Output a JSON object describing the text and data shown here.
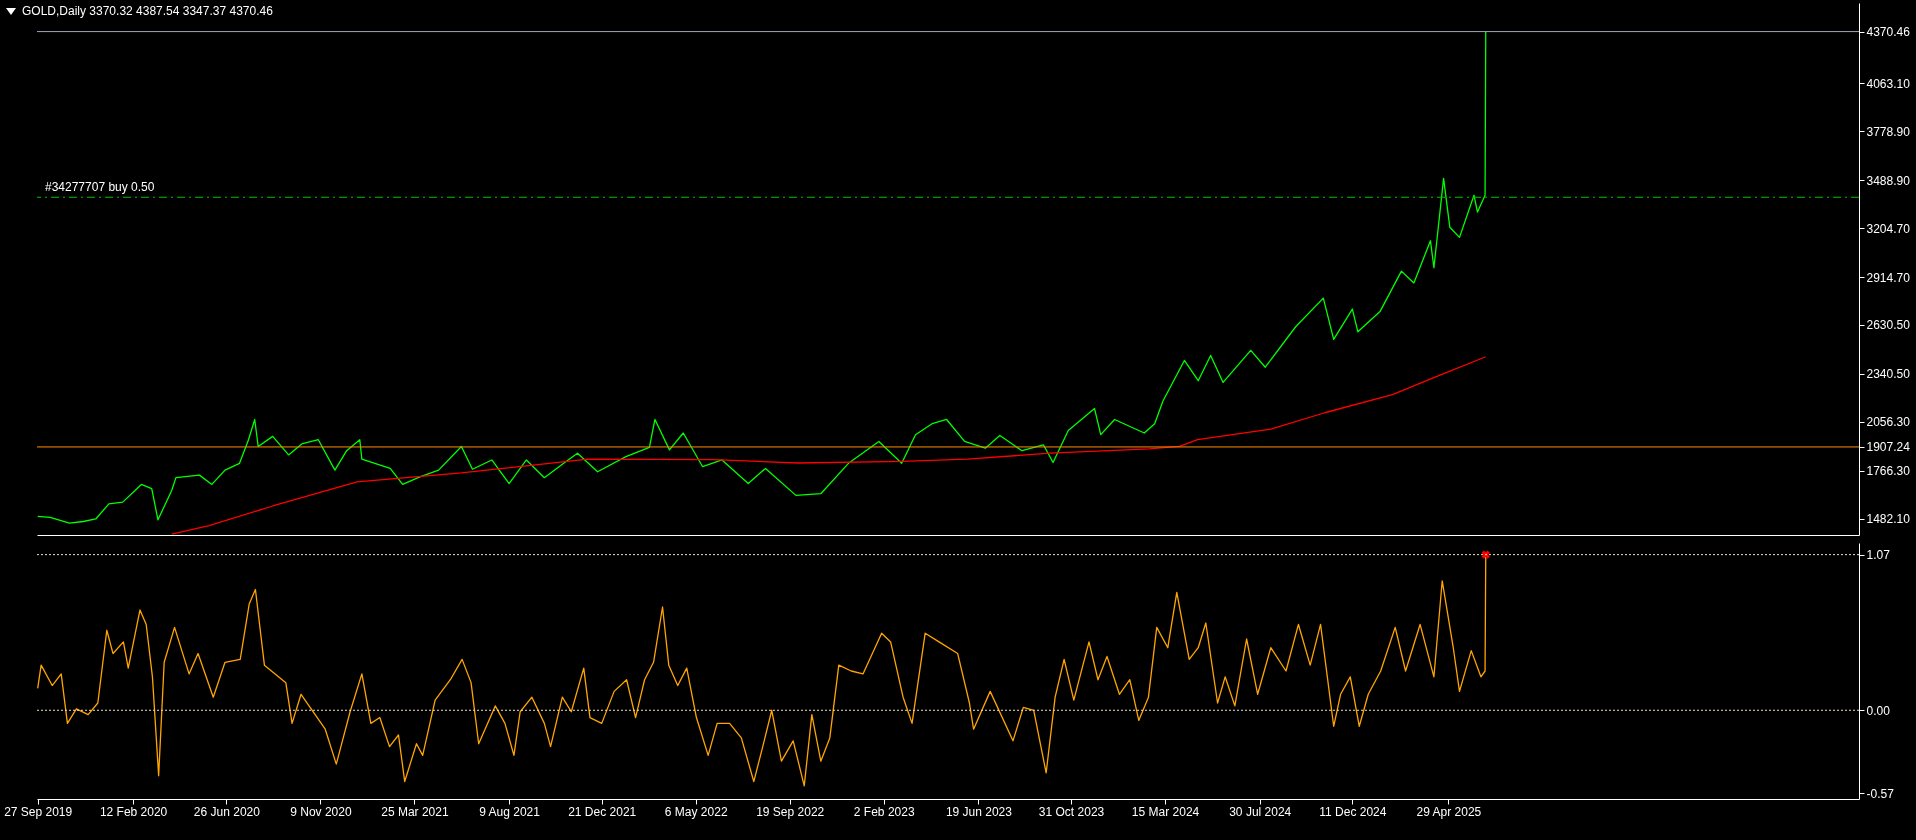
{
  "chart_data": [
    {
      "type": "line",
      "title": "GOLD,Daily  3370.32 4387.54 3347.37 4370.46",
      "tick_labels": "y",
      "legend": false,
      "xlim": [
        "2019-09-26",
        "2026-12-14"
      ],
      "ylim": [
        1385,
        4540
      ],
      "yticks": [
        {
          "value": 1482.1,
          "label": "1482.10"
        },
        {
          "value": 1766.3,
          "label": "1766.30"
        },
        {
          "value": 1907.24,
          "label": "1907.24"
        },
        {
          "value": 2056.3,
          "label": "2056.30"
        },
        {
          "value": 2340.5,
          "label": "2340.50"
        },
        {
          "value": 2630.5,
          "label": "2630.50"
        },
        {
          "value": 2914.7,
          "label": "2914.70"
        },
        {
          "value": 3204.7,
          "label": "3204.70"
        },
        {
          "value": 3488.9,
          "label": "3488.90"
        },
        {
          "value": 3778.9,
          "label": "3778.90"
        },
        {
          "value": 4063.1,
          "label": "4063.10"
        },
        {
          "value": 4370.46,
          "label": "4370.46"
        }
      ],
      "ref_lines": [
        {
          "axis": "y",
          "value": 4370.46,
          "color": "#a0a8b8",
          "line_style": "solid"
        },
        {
          "axis": "y",
          "value": 1907.24,
          "color": "#ff8c00",
          "line_style": "solid"
        },
        {
          "axis": "y",
          "value": 3388,
          "label": "#34277707 buy 0.50",
          "color": "#00c000",
          "line_style": "dashed"
        }
      ],
      "series": [
        {
          "color": "#00ff00",
          "x": [
            "2019-09-27",
            "2019-10-15",
            "2019-11-12",
            "2019-12-02",
            "2019-12-20",
            "2020-01-08",
            "2020-01-28",
            "2020-02-24",
            "2020-03-10",
            "2020-03-19",
            "2020-04-08",
            "2020-04-14",
            "2020-05-18",
            "2020-06-05",
            "2020-06-24",
            "2020-07-15",
            "2020-07-28",
            "2020-08-06",
            "2020-08-11",
            "2020-09-01",
            "2020-09-24",
            "2020-10-13",
            "2020-11-06",
            "2020-11-30",
            "2020-12-17",
            "2021-01-05",
            "2021-01-08",
            "2021-02-18",
            "2021-03-08",
            "2021-04-02",
            "2021-04-29",
            "2021-06-01",
            "2021-06-17",
            "2021-07-15",
            "2021-08-09",
            "2021-09-03",
            "2021-09-29",
            "2021-10-25",
            "2021-11-16",
            "2021-12-15",
            "2022-01-25",
            "2022-02-28",
            "2022-03-08",
            "2022-03-29",
            "2022-04-18",
            "2022-05-16",
            "2022-06-13",
            "2022-07-21",
            "2022-08-15",
            "2022-09-28",
            "2022-11-03",
            "2022-12-13",
            "2023-01-26",
            "2023-02-28",
            "2023-03-20",
            "2023-04-13",
            "2023-05-04",
            "2023-05-30",
            "2023-06-29",
            "2023-07-20",
            "2023-08-21",
            "2023-09-21",
            "2023-10-05",
            "2023-10-27",
            "2023-12-04",
            "2023-12-13",
            "2024-01-02",
            "2024-02-14",
            "2024-02-29",
            "2024-03-12",
            "2024-04-12",
            "2024-05-02",
            "2024-05-20",
            "2024-06-07",
            "2024-07-17",
            "2024-08-07",
            "2024-09-20",
            "2024-10-30",
            "2024-11-14",
            "2024-12-11",
            "2024-12-19",
            "2025-01-20",
            "2025-02-20",
            "2025-03-10",
            "2025-04-03",
            "2025-04-08",
            "2025-04-22",
            "2025-05-01",
            "2025-05-15",
            "2025-06-05",
            "2025-06-10",
            "2025-06-21",
            "2025-06-22"
          ],
          "values": [
            1495,
            1490,
            1455,
            1465,
            1480,
            1570,
            1580,
            1685,
            1660,
            1475,
            1650,
            1725,
            1740,
            1685,
            1770,
            1810,
            1950,
            2070,
            1910,
            1970,
            1860,
            1925,
            1950,
            1770,
            1885,
            1950,
            1835,
            1780,
            1685,
            1730,
            1770,
            1910,
            1775,
            1830,
            1690,
            1830,
            1725,
            1805,
            1870,
            1760,
            1850,
            1905,
            2070,
            1890,
            1990,
            1790,
            1830,
            1690,
            1780,
            1620,
            1630,
            1810,
            1940,
            1810,
            1980,
            2045,
            2070,
            1940,
            1900,
            1975,
            1885,
            1920,
            1815,
            2005,
            2135,
            1980,
            2070,
            1990,
            2045,
            2180,
            2420,
            2300,
            2450,
            2290,
            2480,
            2380,
            2620,
            2790,
            2545,
            2725,
            2590,
            2710,
            2950,
            2880,
            3130,
            2970,
            3500,
            3210,
            3150,
            3400,
            3300,
            3400,
            4370.46
          ]
        },
        {
          "color": "#ff0000",
          "x": [
            "2020-04-08",
            "2020-06-01",
            "2020-09-01",
            "2021-01-01",
            "2021-06-01",
            "2021-12-01",
            "2022-06-01",
            "2022-10-01",
            "2023-03-01",
            "2023-06-03",
            "2023-10-01",
            "2024-02-21",
            "2024-04-05",
            "2024-05-01",
            "2024-08-15",
            "2024-11-01",
            "2025-02-07",
            "2025-04-15",
            "2025-06-22"
          ],
          "values": [
            1390,
            1440,
            1557,
            1700,
            1753,
            1835,
            1832,
            1812,
            1822,
            1835,
            1870,
            1896,
            1910,
            1950,
            2013,
            2110,
            2217,
            2330,
            2442
          ]
        }
      ]
    },
    {
      "type": "line",
      "legend": false,
      "xlim": [
        "2019-09-26",
        "2026-12-14"
      ],
      "ylim": [
        -0.61,
        1.15
      ],
      "xticks": [
        {
          "value": "2019-09-27",
          "label": "27 Sep 2019"
        },
        {
          "value": "2020-02-12",
          "label": "12 Feb 2020"
        },
        {
          "value": "2020-06-26",
          "label": "26 Jun 2020"
        },
        {
          "value": "2020-11-09",
          "label": "9 Nov 2020"
        },
        {
          "value": "2021-03-25",
          "label": "25 Mar 2021"
        },
        {
          "value": "2021-08-09",
          "label": "9 Aug 2021"
        },
        {
          "value": "2021-12-21",
          "label": "21 Dec 2021"
        },
        {
          "value": "2022-05-06",
          "label": "6 May 2022"
        },
        {
          "value": "2022-09-19",
          "label": "19 Sep 2022"
        },
        {
          "value": "2023-02-02",
          "label": "2 Feb 2023"
        },
        {
          "value": "2023-06-19",
          "label": "19 Jun 2023"
        },
        {
          "value": "2023-10-31",
          "label": "31 Oct 2023"
        },
        {
          "value": "2024-03-15",
          "label": "15 Mar 2024"
        },
        {
          "value": "2024-07-30",
          "label": "30 Jul 2024"
        },
        {
          "value": "2024-12-11",
          "label": "11 Dec 2024"
        },
        {
          "value": "2025-04-29",
          "label": "29 Apr 2025"
        }
      ],
      "yticks": [
        {
          "value": -0.57,
          "label": "-0.57"
        },
        {
          "value": 0,
          "label": "0.00"
        },
        {
          "value": 1.07,
          "label": "1.07"
        }
      ],
      "ref_lines": [
        {
          "axis": "y",
          "value": 1.07,
          "color": "#f0e0c0",
          "line_style": "dotted"
        },
        {
          "axis": "y",
          "value": 0,
          "color": "#f0e0c0",
          "line_style": "dotted"
        }
      ],
      "series": [
        {
          "color": "#ffa500",
          "x": [
            "2019-09-27",
            "2019-10-02",
            "2019-10-18",
            "2019-10-31",
            "2019-11-09",
            "2019-11-22",
            "2019-12-09",
            "2019-12-23",
            "2020-01-05",
            "2020-01-14",
            "2020-01-29",
            "2020-02-05",
            "2020-02-22",
            "2020-03-02",
            "2020-03-11",
            "2020-03-20",
            "2020-03-28",
            "2020-04-12",
            "2020-05-03",
            "2020-05-16",
            "2020-06-07",
            "2020-06-24",
            "2020-07-16",
            "2020-07-29",
            "2020-08-07",
            "2020-08-20",
            "2020-09-20",
            "2020-09-29",
            "2020-10-12",
            "2020-11-16",
            "2020-12-02",
            "2020-12-22",
            "2021-01-08",
            "2021-01-21",
            "2021-02-03",
            "2021-02-17",
            "2021-03-02",
            "2021-03-11",
            "2021-03-28",
            "2021-04-06",
            "2021-04-24",
            "2021-05-16",
            "2021-06-02",
            "2021-06-15",
            "2021-06-26",
            "2021-07-20",
            "2021-08-03",
            "2021-08-16",
            "2021-08-25",
            "2021-09-11",
            "2021-09-29",
            "2021-10-08",
            "2021-10-25",
            "2021-11-07",
            "2021-11-25",
            "2021-12-04",
            "2021-12-21",
            "2022-01-08",
            "2022-01-26",
            "2022-02-08",
            "2022-02-21",
            "2022-03-06",
            "2022-03-19",
            "2022-03-28",
            "2022-04-10",
            "2022-04-23",
            "2022-05-07",
            "2022-05-24",
            "2022-06-06",
            "2022-06-24",
            "2022-07-11",
            "2022-07-29",
            "2022-08-11",
            "2022-08-24",
            "2022-09-07",
            "2022-09-24",
            "2022-10-10",
            "2022-10-21",
            "2022-11-03",
            "2022-11-16",
            "2022-11-29",
            "2022-12-17",
            "2023-01-03",
            "2023-01-30",
            "2023-02-12",
            "2023-03-02",
            "2023-03-15",
            "2023-04-03",
            "2023-04-23",
            "2023-05-20",
            "2023-06-06",
            "2023-06-12",
            "2023-07-06",
            "2023-08-08",
            "2023-08-23",
            "2023-09-07",
            "2023-09-25",
            "2023-10-08",
            "2023-10-21",
            "2023-11-04",
            "2023-11-26",
            "2023-12-09",
            "2023-12-22",
            "2024-01-09",
            "2024-01-24",
            "2024-02-06",
            "2024-02-20",
            "2024-03-03",
            "2024-03-19",
            "2024-04-01",
            "2024-04-19",
            "2024-05-02",
            "2024-05-13",
            "2024-05-30",
            "2024-06-10",
            "2024-06-24",
            "2024-07-11",
            "2024-07-27",
            "2024-08-15",
            "2024-09-06",
            "2024-09-24",
            "2024-10-11",
            "2024-10-26",
            "2024-11-14",
            "2024-11-24",
            "2024-12-08",
            "2024-12-21",
            "2025-01-03",
            "2025-01-21",
            "2025-02-11",
            "2025-02-26",
            "2025-03-19",
            "2025-04-08",
            "2025-04-20",
            "2025-05-06",
            "2025-05-15",
            "2025-06-01",
            "2025-06-15",
            "2025-06-21",
            "2025-06-22"
          ],
          "values": [
            0.15,
            0.31,
            0.17,
            0.25,
            -0.09,
            0.01,
            -0.03,
            0.05,
            0.55,
            0.39,
            0.47,
            0.29,
            0.69,
            0.59,
            0.23,
            -0.45,
            0.33,
            0.57,
            0.25,
            0.39,
            0.09,
            0.33,
            0.35,
            0.73,
            0.83,
            0.31,
            0.19,
            -0.09,
            0.11,
            -0.13,
            -0.37,
            -0.01,
            0.25,
            -0.09,
            -0.05,
            -0.25,
            -0.17,
            -0.49,
            -0.23,
            -0.31,
            0.07,
            0.21,
            0.35,
            0.19,
            -0.23,
            0.03,
            -0.09,
            -0.31,
            -0.01,
            0.09,
            -0.09,
            -0.25,
            0.09,
            -0.01,
            0.29,
            -0.05,
            -0.09,
            0.13,
            0.21,
            -0.05,
            0.21,
            0.33,
            0.71,
            0.31,
            0.17,
            0.29,
            -0.05,
            -0.31,
            -0.09,
            -0.09,
            -0.19,
            -0.49,
            -0.25,
            0,
            -0.35,
            -0.21,
            -0.52,
            -0.03,
            -0.35,
            -0.19,
            0.31,
            0.27,
            0.25,
            0.53,
            0.47,
            0.09,
            -0.09,
            0.53,
            0.47,
            0.39,
            0.05,
            -0.13,
            0.13,
            -0.21,
            0.02,
            0,
            -0.43,
            0.09,
            0.35,
            0.07,
            0.47,
            0.21,
            0.37,
            0.11,
            0.21,
            -0.07,
            0.09,
            0.57,
            0.43,
            0.81,
            0.35,
            0.43,
            0.6,
            0.05,
            0.23,
            0.03,
            0.49,
            0.11,
            0.43,
            0.27,
            0.59,
            0.31,
            0.59,
            -0.11,
            0.11,
            0.23,
            -0.11,
            0.11,
            0.27,
            0.57,
            0.27,
            0.59,
            0.23,
            0.89,
            0.43,
            0.13,
            0.41,
            0.23,
            0.27,
            1.07
          ]
        },
        {
          "type": "scatter",
          "marker": "cross",
          "color": "#ff0000",
          "x": [
            "2025-06-22"
          ],
          "values": [
            1.07
          ]
        }
      ]
    }
  ]
}
